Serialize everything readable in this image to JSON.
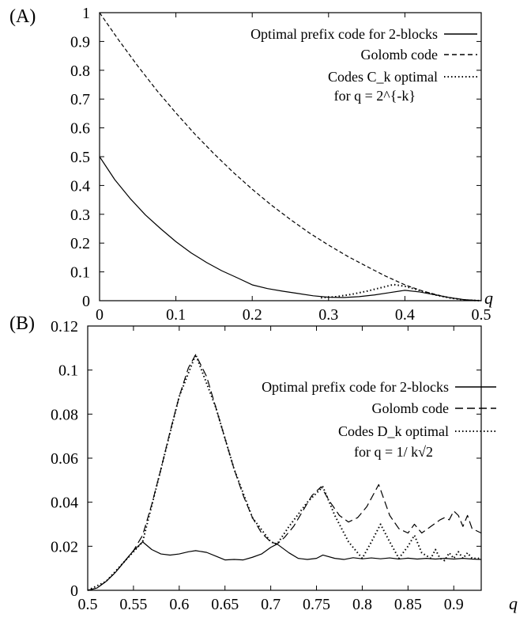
{
  "chart_data": [
    {
      "panel_label": "(A)",
      "type": "line",
      "xlabel": "q",
      "ylabel": "",
      "xlim": [
        0,
        0.5
      ],
      "ylim": [
        0,
        1
      ],
      "x_ticks": [
        "0",
        "0.1",
        "0.2",
        "0.3",
        "0.4",
        "0.5"
      ],
      "y_ticks": [
        "0",
        "0.1",
        "0.2",
        "0.3",
        "0.4",
        "0.5",
        "0.6",
        "0.7",
        "0.8",
        "0.9",
        "1"
      ],
      "grid": false,
      "legend_position": "top-right",
      "legend": [
        {
          "label": "Optimal prefix code for 2-blocks",
          "style": "solid"
        },
        {
          "label": "Golomb code",
          "style": "dashed"
        },
        {
          "label": "Codes C_k optimal",
          "label_line2": "for q = 2^{-k}",
          "style": "dotted"
        }
      ],
      "series": [
        {
          "name": "Optimal prefix code for 2-blocks",
          "style": "solid",
          "x": [
            0,
            0.02,
            0.04,
            0.06,
            0.08,
            0.1,
            0.12,
            0.14,
            0.16,
            0.18,
            0.2,
            0.22,
            0.24,
            0.26,
            0.28,
            0.3,
            0.32,
            0.34,
            0.36,
            0.38,
            0.4,
            0.42,
            0.44,
            0.46,
            0.48,
            0.5
          ],
          "y": [
            0.5,
            0.42,
            0.355,
            0.298,
            0.25,
            0.205,
            0.166,
            0.133,
            0.104,
            0.08,
            0.055,
            0.042,
            0.033,
            0.025,
            0.017,
            0.012,
            0.011,
            0.014,
            0.02,
            0.028,
            0.036,
            0.03,
            0.02,
            0.01,
            0.003,
            0
          ]
        },
        {
          "name": "Golomb code",
          "style": "dashed",
          "x": [
            0,
            0.025,
            0.05,
            0.075,
            0.1,
            0.125,
            0.15,
            0.175,
            0.2,
            0.225,
            0.25,
            0.275,
            0.3,
            0.325,
            0.35,
            0.375,
            0.4,
            0.425,
            0.45,
            0.475,
            0.5
          ],
          "y": [
            1,
            0.905,
            0.815,
            0.73,
            0.652,
            0.578,
            0.51,
            0.446,
            0.387,
            0.332,
            0.282,
            0.235,
            0.193,
            0.154,
            0.119,
            0.085,
            0.055,
            0.032,
            0.015,
            0.004,
            0
          ]
        },
        {
          "name": "Codes C_k optimal",
          "style": "dotted",
          "x": [
            0.29,
            0.31,
            0.33,
            0.35,
            0.37,
            0.385,
            0.4,
            0.42,
            0.44,
            0.46,
            0.48,
            0.5
          ],
          "y": [
            0.01,
            0.014,
            0.022,
            0.033,
            0.046,
            0.056,
            0.05,
            0.035,
            0.02,
            0.009,
            0.002,
            0
          ]
        }
      ]
    },
    {
      "panel_label": "(B)",
      "type": "line",
      "xlabel": "q",
      "ylabel": "",
      "xlim": [
        0.5,
        0.93
      ],
      "ylim": [
        0,
        0.12
      ],
      "x_ticks": [
        "0.5",
        "0.55",
        "0.6",
        "0.65",
        "0.7",
        "0.75",
        "0.8",
        "0.85",
        "0.9"
      ],
      "y_ticks": [
        "0",
        "0.02",
        "0.04",
        "0.06",
        "0.08",
        "0.1",
        "0.12"
      ],
      "grid": false,
      "legend_position": "top-right",
      "legend": [
        {
          "label": "Optimal prefix code for 2-blocks",
          "style": "solid"
        },
        {
          "label": "Golomb code",
          "style": "dashed"
        },
        {
          "label": "Codes D_k optimal",
          "label_line2": "for q = 1/ k√2",
          "style": "dotted"
        }
      ],
      "series": [
        {
          "name": "Optimal prefix code for 2-blocks",
          "style": "solid",
          "x": [
            0.5,
            0.51,
            0.52,
            0.53,
            0.54,
            0.55,
            0.56,
            0.57,
            0.58,
            0.59,
            0.6,
            0.61,
            0.618,
            0.63,
            0.64,
            0.65,
            0.66,
            0.67,
            0.68,
            0.69,
            0.7,
            0.707,
            0.72,
            0.73,
            0.74,
            0.75,
            0.757,
            0.77,
            0.78,
            0.79,
            0.8,
            0.81,
            0.82,
            0.83,
            0.84,
            0.85,
            0.86,
            0.87,
            0.88,
            0.89,
            0.9,
            0.91,
            0.92,
            0.93
          ],
          "y": [
            0,
            0.001,
            0.004,
            0.008,
            0.013,
            0.018,
            0.022,
            0.0185,
            0.0165,
            0.016,
            0.0165,
            0.0175,
            0.018,
            0.0172,
            0.0155,
            0.0138,
            0.014,
            0.0138,
            0.015,
            0.0165,
            0.0195,
            0.021,
            0.017,
            0.0145,
            0.014,
            0.0145,
            0.016,
            0.0145,
            0.014,
            0.0148,
            0.0143,
            0.0147,
            0.0143,
            0.0147,
            0.0142,
            0.0146,
            0.0142,
            0.0145,
            0.0142,
            0.0145,
            0.0142,
            0.0145,
            0.0142,
            0.014
          ]
        },
        {
          "name": "Golomb code",
          "style": "dashed",
          "x": [
            0.5,
            0.51,
            0.52,
            0.53,
            0.54,
            0.55,
            0.56,
            0.57,
            0.58,
            0.59,
            0.6,
            0.61,
            0.618,
            0.63,
            0.64,
            0.65,
            0.66,
            0.67,
            0.68,
            0.69,
            0.7,
            0.707,
            0.715,
            0.725,
            0.735,
            0.745,
            0.755,
            0.765,
            0.775,
            0.785,
            0.795,
            0.805,
            0.818,
            0.83,
            0.84,
            0.85,
            0.857,
            0.865,
            0.875,
            0.885,
            0.89,
            0.895,
            0.9,
            0.905,
            0.91,
            0.915,
            0.92,
            0.93
          ],
          "y": [
            0,
            0.001,
            0.004,
            0.008,
            0.013,
            0.018,
            0.025,
            0.039,
            0.055,
            0.072,
            0.088,
            0.101,
            0.107,
            0.097,
            0.083,
            0.069,
            0.055,
            0.043,
            0.033,
            0.026,
            0.022,
            0.021,
            0.024,
            0.029,
            0.036,
            0.043,
            0.047,
            0.04,
            0.034,
            0.031,
            0.033,
            0.038,
            0.048,
            0.034,
            0.028,
            0.026,
            0.03,
            0.026,
            0.029,
            0.032,
            0.033,
            0.032,
            0.036,
            0.034,
            0.029,
            0.034,
            0.028,
            0.026
          ]
        },
        {
          "name": "Codes D_k optimal",
          "style": "dotted",
          "x": [
            0.5,
            0.52,
            0.54,
            0.56,
            0.58,
            0.6,
            0.618,
            0.64,
            0.66,
            0.68,
            0.7,
            0.707,
            0.72,
            0.74,
            0.757,
            0.77,
            0.785,
            0.8,
            0.81,
            0.82,
            0.83,
            0.84,
            0.85,
            0.857,
            0.865,
            0.875,
            0.88,
            0.885,
            0.89,
            0.895,
            0.9,
            0.905,
            0.91,
            0.915,
            0.92,
            0.93
          ],
          "y": [
            0,
            0.004,
            0.013,
            0.022,
            0.055,
            0.088,
            0.107,
            0.083,
            0.055,
            0.033,
            0.022,
            0.021,
            0.029,
            0.04,
            0.047,
            0.034,
            0.022,
            0.0145,
            0.022,
            0.03,
            0.022,
            0.0145,
            0.02,
            0.025,
            0.017,
            0.0145,
            0.0185,
            0.0145,
            0.0135,
            0.017,
            0.0145,
            0.0175,
            0.0145,
            0.017,
            0.0145,
            0.0145
          ]
        }
      ]
    }
  ]
}
